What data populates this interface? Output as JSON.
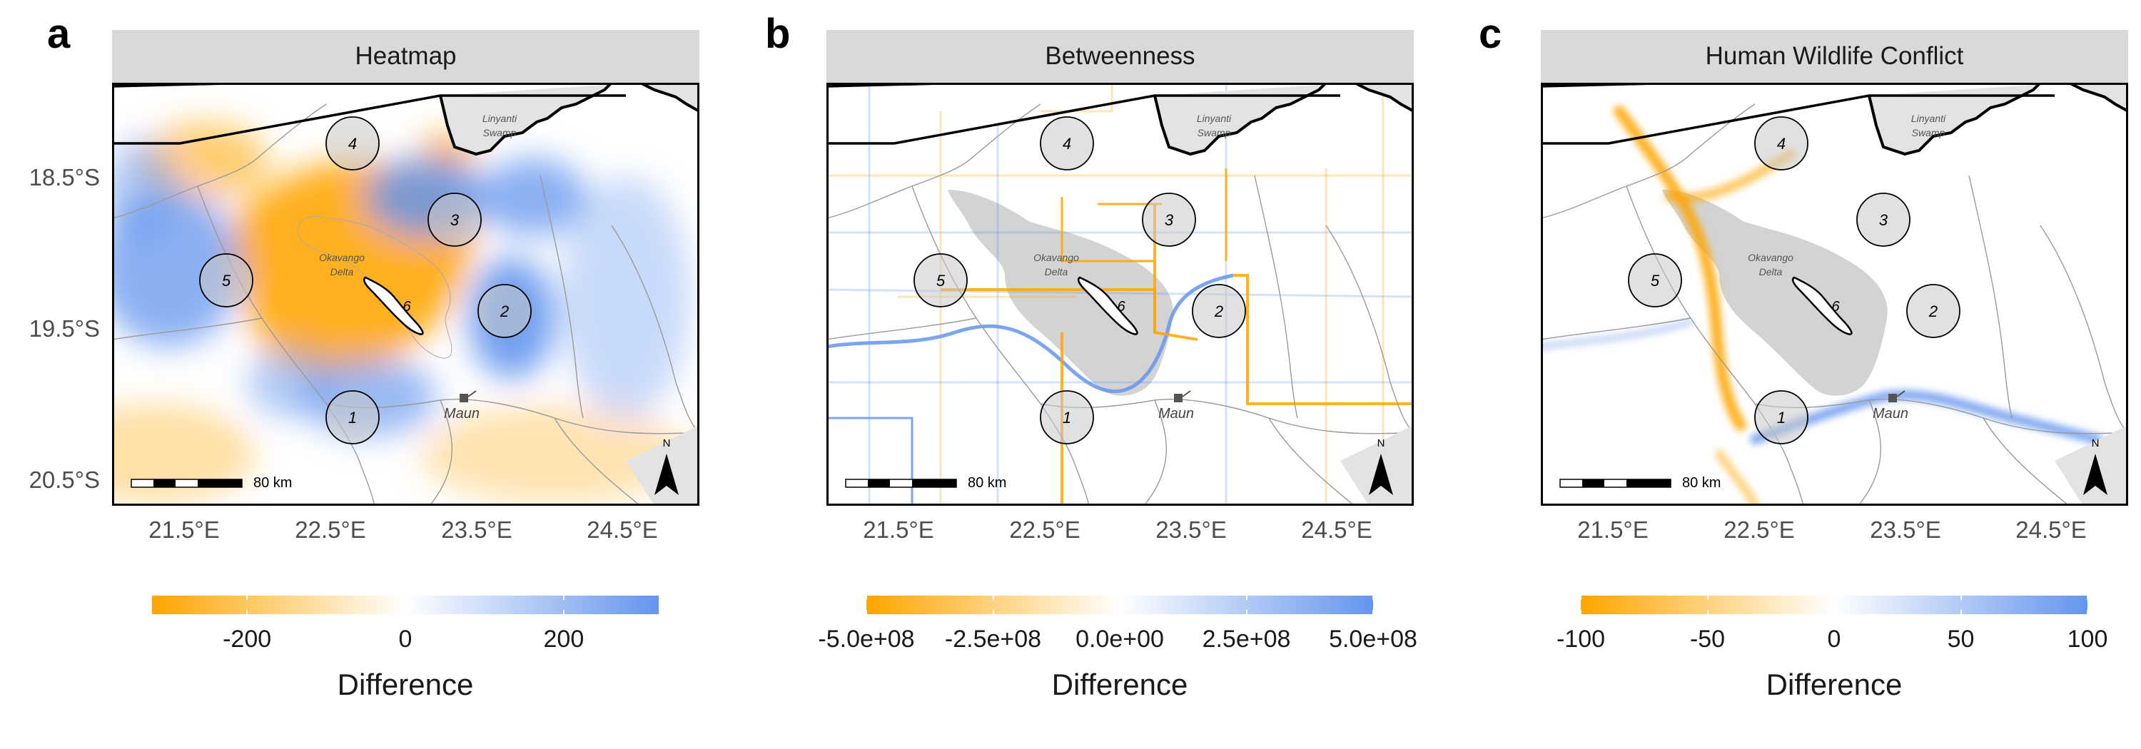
{
  "panels": [
    {
      "letter": "a",
      "title": "Heatmap",
      "scale_map": "diverging",
      "legend": {
        "title": "Difference",
        "ticks": [
          "-200",
          "0",
          "200"
        ],
        "tick_values": [
          -200,
          0,
          200
        ],
        "range": [
          -320,
          320
        ]
      },
      "bar_label": "80 km"
    },
    {
      "letter": "b",
      "title": "Betweenness",
      "scale_map": "network",
      "legend": {
        "title": "Difference",
        "ticks": [
          "-5.0e+08",
          "-2.5e+08",
          "0.0e+00",
          "2.5e+08",
          "5.0e+08"
        ],
        "tick_values": [
          -500000000,
          -250000000,
          0,
          250000000,
          500000000
        ],
        "range": [
          -500000000,
          500000000
        ]
      },
      "bar_label": "80 km"
    },
    {
      "letter": "c",
      "title": "Human Wildlife Conflict",
      "scale_map": "conflict",
      "legend": {
        "title": "Difference",
        "ticks": [
          "-100",
          "-50",
          "0",
          "50",
          "100"
        ],
        "tick_values": [
          -100,
          -50,
          0,
          50,
          100
        ],
        "range": [
          -100,
          100
        ]
      },
      "bar_label": "80 km"
    }
  ],
  "axes": {
    "lat_ticks": [
      "18.5°S",
      "19.5°S",
      "20.5°S"
    ],
    "lon_ticks": [
      "21.5°E",
      "22.5°E",
      "23.5°E",
      "24.5°E"
    ]
  },
  "places": {
    "swamp": [
      "Linyanti",
      "Swamp"
    ],
    "delta": [
      "Okavango",
      "Delta"
    ],
    "town": "Maun",
    "north": "N"
  },
  "sites": [
    "1",
    "2",
    "3",
    "4",
    "5",
    "6"
  ],
  "colors": {
    "negative": "#ffa500",
    "neutral": "#ffffff",
    "positive": "#6495ed",
    "delta_grey": "#d3d3d3",
    "strip": "#d9d9d9"
  }
}
